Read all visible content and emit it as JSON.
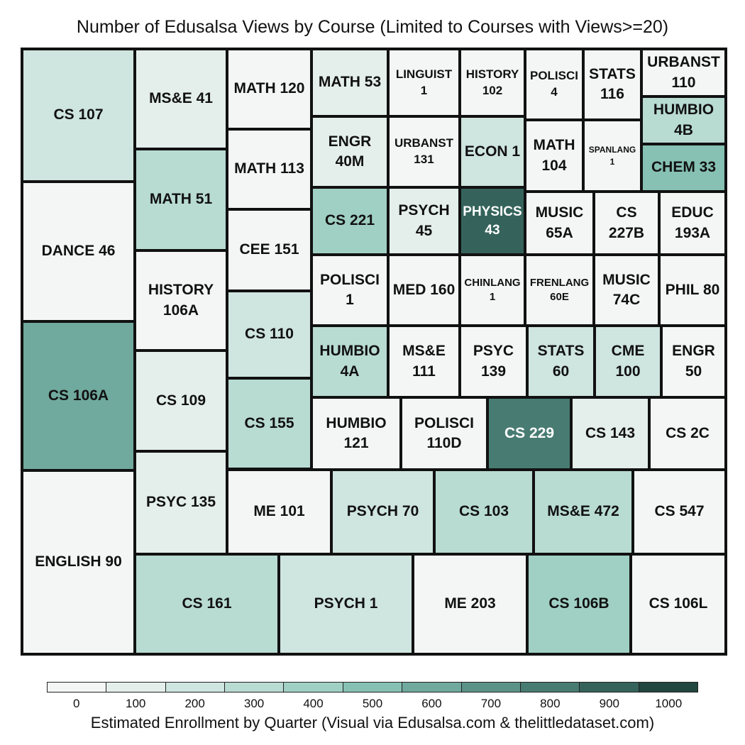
{
  "chart_data": {
    "type": "treemap",
    "title": "Number of Edusalsa Views by Course (Limited to Courses with Views>=20)",
    "colorbar_label": "Estimated Enrollment by Quarter (Visual via Edusalsa.com & thelittledataset.com)",
    "colorbar_ticks": [
      "0",
      "100",
      "200",
      "300",
      "400",
      "500",
      "600",
      "700",
      "800",
      "900",
      "1000"
    ],
    "colorbar_range": [
      0,
      1000
    ],
    "colorbar_bins": 11,
    "colorscale": [
      "#f4f6f6",
      "#e4efec",
      "#cfe5df",
      "#b8dbd2",
      "#a0d0c4",
      "#86c1b3",
      "#70a99d",
      "#5c9388",
      "#487b72",
      "#35635b",
      "#224640"
    ],
    "tiles": [
      {
        "label": "CS 107",
        "enrollment": 280
      },
      {
        "label": "DANCE 46",
        "enrollment": 80
      },
      {
        "label": "CS 106A",
        "enrollment": 640
      },
      {
        "label": "ENGLISH 90",
        "enrollment": 70
      },
      {
        "label": "MS&E 41",
        "enrollment": 130
      },
      {
        "label": "MATH 51",
        "enrollment": 330
      },
      {
        "label": "HISTORY\n106A",
        "enrollment": 30
      },
      {
        "label": "CS 109",
        "enrollment": 190
      },
      {
        "label": "PSYC 135",
        "enrollment": 180
      },
      {
        "label": "MATH 120",
        "enrollment": 20
      },
      {
        "label": "MATH 113",
        "enrollment": 40
      },
      {
        "label": "CEE 151",
        "enrollment": 30
      },
      {
        "label": "CS 110",
        "enrollment": 200
      },
      {
        "label": "CS 155",
        "enrollment": 330
      },
      {
        "label": "MATH 53",
        "enrollment": 110
      },
      {
        "label": "LINGUIST\n1",
        "enrollment": 60
      },
      {
        "label": "HISTORY\n102",
        "enrollment": 60
      },
      {
        "label": "POLISCI\n4",
        "enrollment": 30
      },
      {
        "label": "STATS\n116",
        "enrollment": 80
      },
      {
        "label": "URBANST\n110",
        "enrollment": 20
      },
      {
        "label": "HUMBIO\n4B",
        "enrollment": 330
      },
      {
        "label": "CHEM 33",
        "enrollment": 530
      },
      {
        "label": "ENGR\n40M",
        "enrollment": 120
      },
      {
        "label": "URBANST\n131",
        "enrollment": 90
      },
      {
        "label": "ECON 1",
        "enrollment": 260
      },
      {
        "label": "MATH\n104",
        "enrollment": 40
      },
      {
        "label": "SPANLANG\n1",
        "enrollment": 20
      },
      {
        "label": "CS 221",
        "enrollment": 480
      },
      {
        "label": "PSYCH\n45",
        "enrollment": 160
      },
      {
        "label": "PHYSICS\n43",
        "enrollment": 950
      },
      {
        "label": "MUSIC\n65A",
        "enrollment": 20
      },
      {
        "label": "CS 227B",
        "enrollment": 70
      },
      {
        "label": "EDUC\n193A",
        "enrollment": 60
      },
      {
        "label": "POLISCI\n1",
        "enrollment": 40
      },
      {
        "label": "MED 160",
        "enrollment": 80
      },
      {
        "label": "CHINLANG\n1",
        "enrollment": 20
      },
      {
        "label": "FRENLANG\n60E",
        "enrollment": 20
      },
      {
        "label": "MUSIC\n74C",
        "enrollment": 20
      },
      {
        "label": "PHIL 80",
        "enrollment": 80
      },
      {
        "label": "HUMBIO\n4A",
        "enrollment": 380
      },
      {
        "label": "MS&E\n111",
        "enrollment": 80
      },
      {
        "label": "PSYC\n139",
        "enrollment": 20
      },
      {
        "label": "STATS\n60",
        "enrollment": 290
      },
      {
        "label": "CME\n100",
        "enrollment": 200
      },
      {
        "label": "ENGR\n50",
        "enrollment": 40
      },
      {
        "label": "HUMBIO\n121",
        "enrollment": 90
      },
      {
        "label": "POLISCI\n110D",
        "enrollment": 20
      },
      {
        "label": "CS 229",
        "enrollment": 820
      },
      {
        "label": "CS 143",
        "enrollment": 110
      },
      {
        "label": "CS 2C",
        "enrollment": 60
      },
      {
        "label": "ME 101",
        "enrollment": 50
      },
      {
        "label": "PSYCH 70",
        "enrollment": 290
      },
      {
        "label": "CS 103",
        "enrollment": 340
      },
      {
        "label": "MS&E 472",
        "enrollment": 300
      },
      {
        "label": "CS 547",
        "enrollment": 40
      },
      {
        "label": "CS 161",
        "enrollment": 380
      },
      {
        "label": "PSYCH 1",
        "enrollment": 270
      },
      {
        "label": "ME 203",
        "enrollment": 70
      },
      {
        "label": "CS 106B",
        "enrollment": 470
      },
      {
        "label": "CS 106L",
        "enrollment": 50
      }
    ]
  }
}
